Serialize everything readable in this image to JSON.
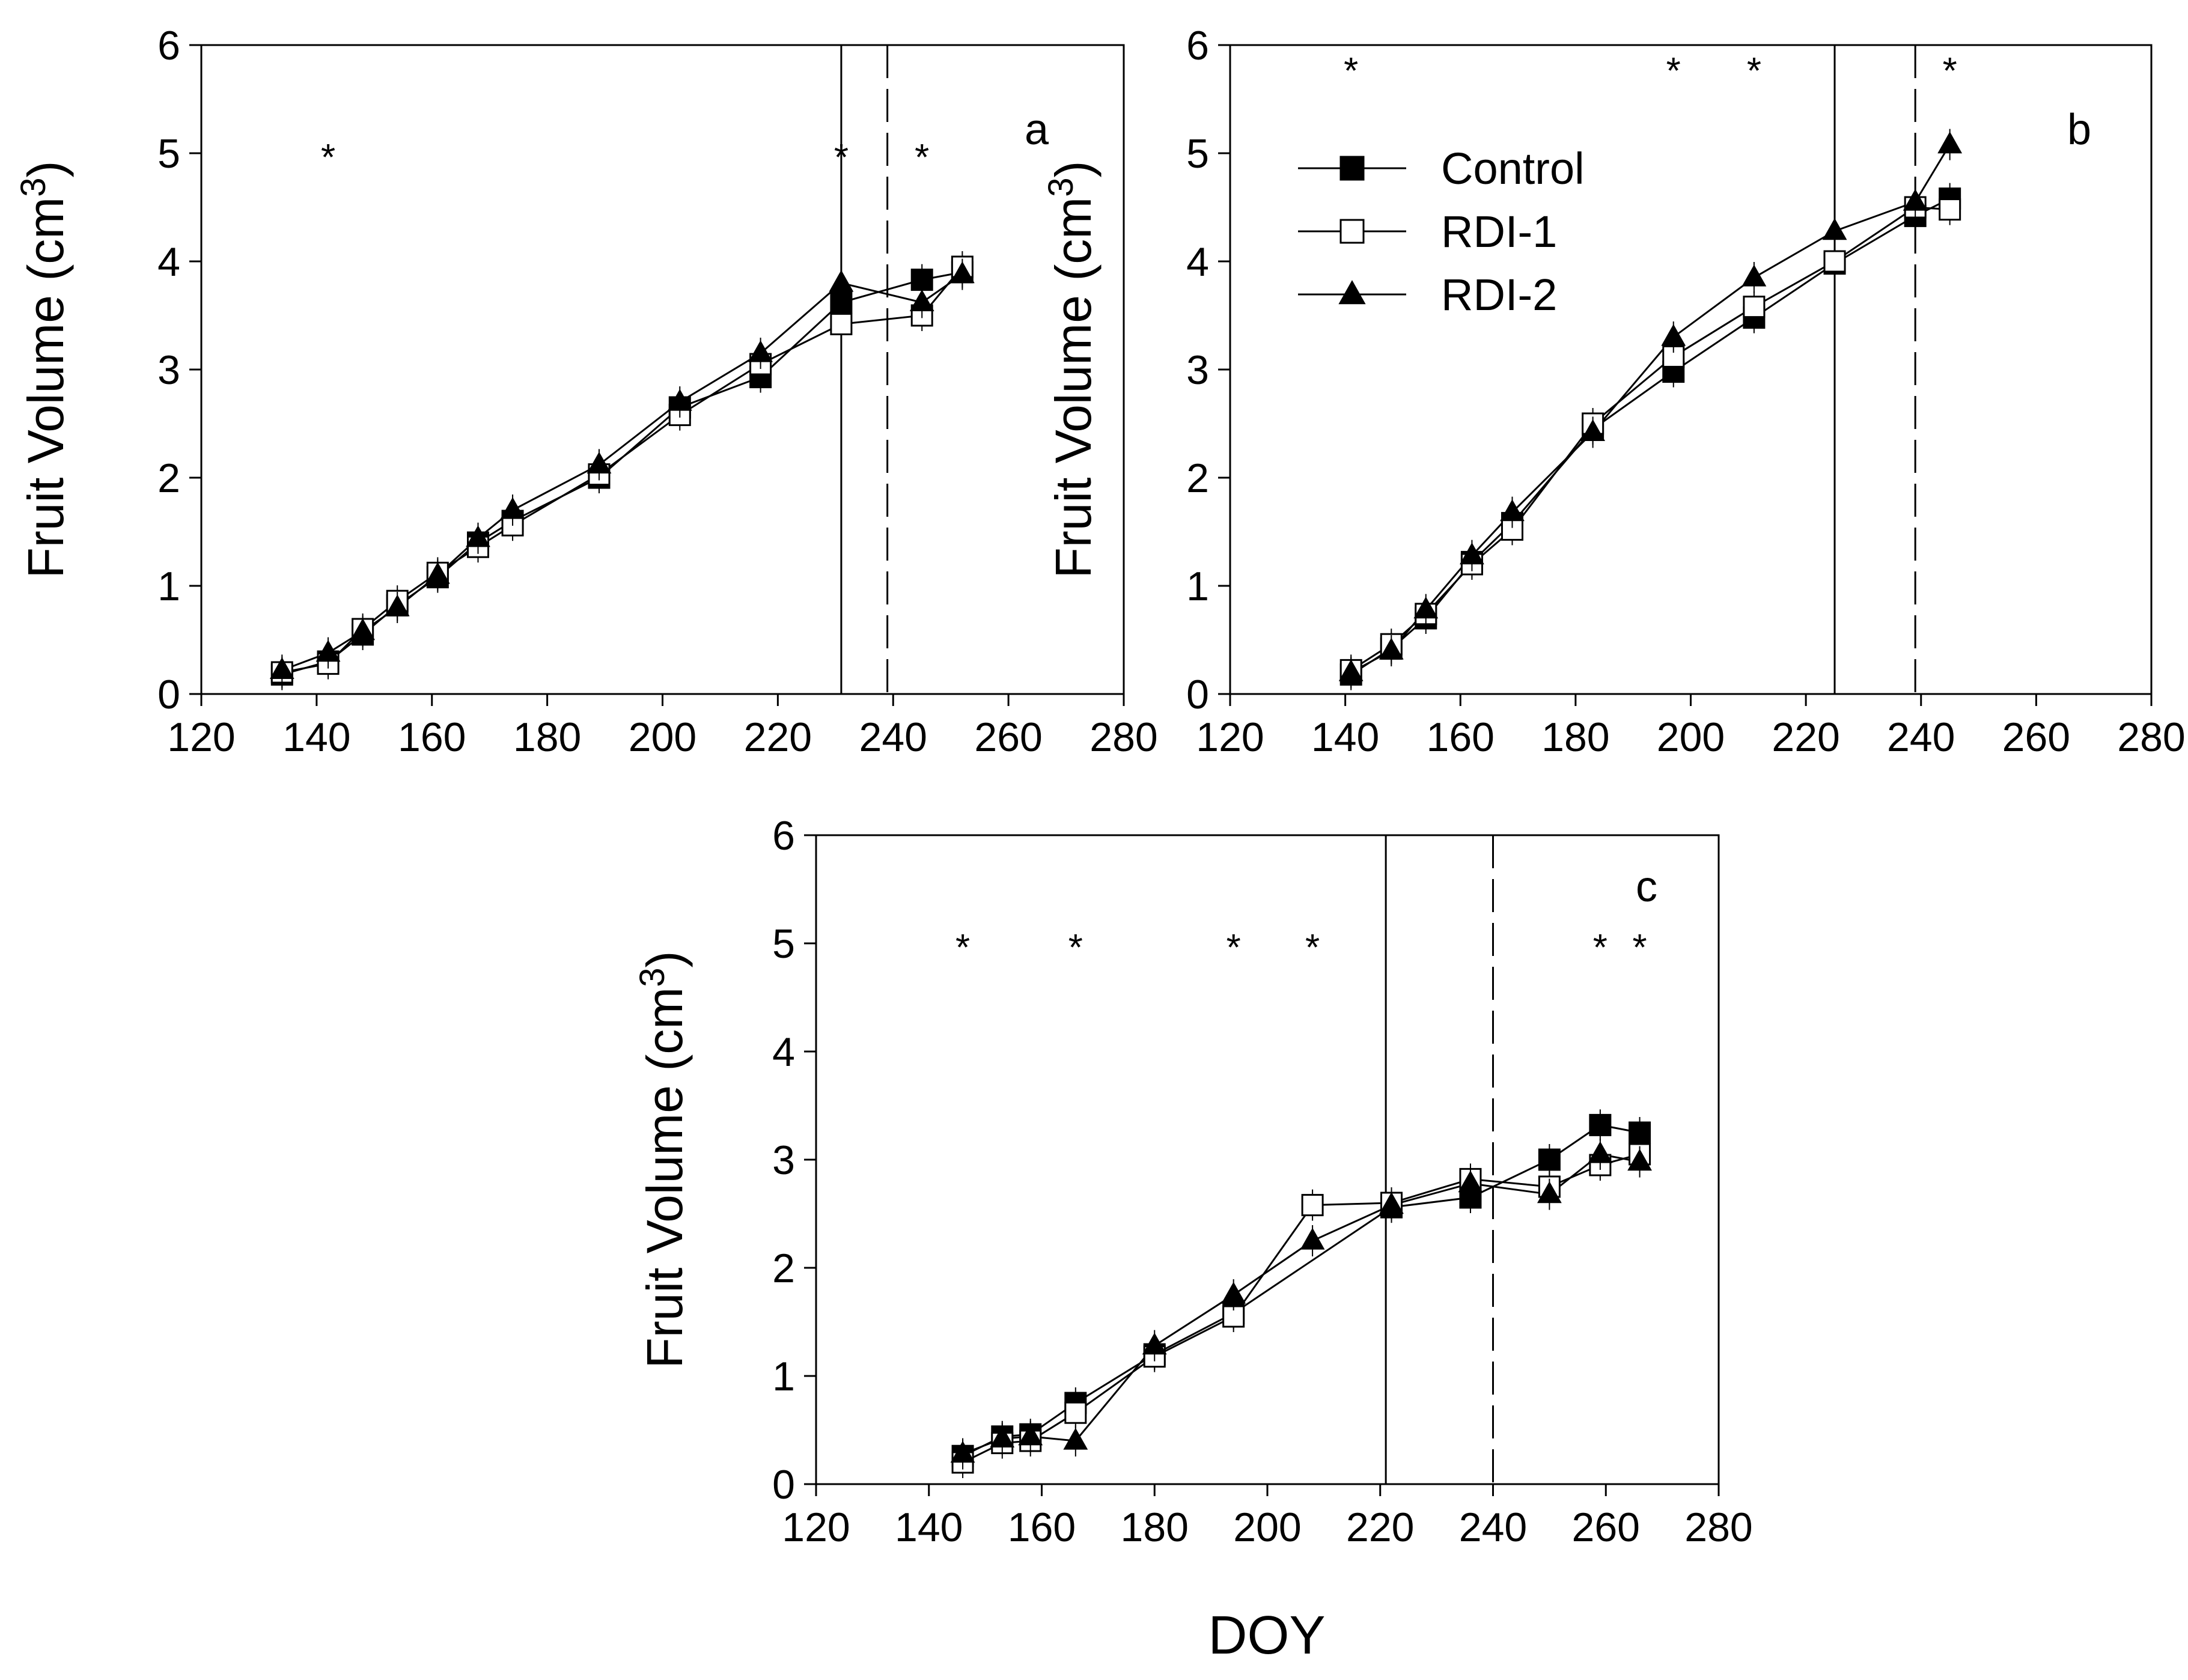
{
  "figure": {
    "y_axis_label_main": "Fruit Volume (cm",
    "y_axis_label_sup": "3",
    "y_axis_label_close": ")",
    "x_axis_label": "DOY",
    "legend": [
      {
        "name": "Control",
        "marker": "filled-square"
      },
      {
        "name": "RDI-1",
        "marker": "open-square"
      },
      {
        "name": "RDI-2",
        "marker": "filled-triangle"
      }
    ],
    "significance_marker": "*"
  },
  "chart_data": [
    {
      "type": "line",
      "panel_label": "a",
      "xlabel": "DOY",
      "ylabel": "Fruit Volume (cm3)",
      "xlim": [
        120,
        280
      ],
      "ylim": [
        0,
        6
      ],
      "x_ticks": [
        120,
        140,
        160,
        180,
        200,
        220,
        240,
        260,
        280
      ],
      "y_ticks": [
        0,
        1,
        2,
        3,
        4,
        5,
        6
      ],
      "vertical_lines": [
        {
          "x": 231,
          "style": "solid"
        },
        {
          "x": 239,
          "style": "dashed"
        }
      ],
      "significance": [
        {
          "x": 142,
          "y": 5
        },
        {
          "x": 231,
          "y": 5
        },
        {
          "x": 245,
          "y": 5
        }
      ],
      "series": [
        {
          "name": "Control",
          "marker": "filled-square",
          "x": [
            134,
            142,
            148,
            154,
            161,
            168,
            174,
            189,
            203,
            217,
            231,
            245,
            252
          ],
          "values": [
            0.18,
            0.3,
            0.55,
            0.82,
            1.08,
            1.4,
            1.6,
            2.0,
            2.65,
            2.93,
            3.62,
            3.83,
            3.9
          ]
        },
        {
          "name": "RDI-1",
          "marker": "open-square",
          "x": [
            134,
            142,
            148,
            154,
            161,
            168,
            174,
            189,
            203,
            217,
            231,
            245,
            252
          ],
          "values": [
            0.2,
            0.28,
            0.6,
            0.86,
            1.12,
            1.36,
            1.56,
            2.03,
            2.58,
            3.05,
            3.42,
            3.5,
            3.95
          ]
        },
        {
          "name": "RDI-2",
          "marker": "filled-triangle",
          "x": [
            134,
            142,
            148,
            154,
            161,
            168,
            174,
            189,
            203,
            217,
            231,
            245,
            252
          ],
          "values": [
            0.22,
            0.38,
            0.58,
            0.8,
            1.1,
            1.44,
            1.7,
            2.12,
            2.7,
            3.15,
            3.8,
            3.62,
            3.88
          ]
        }
      ]
    },
    {
      "type": "line",
      "panel_label": "b",
      "xlabel": "DOY",
      "ylabel": "Fruit Volume (cm3)",
      "xlim": [
        120,
        280
      ],
      "ylim": [
        0,
        6
      ],
      "x_ticks": [
        120,
        140,
        160,
        180,
        200,
        220,
        240,
        260,
        280
      ],
      "y_ticks": [
        0,
        1,
        2,
        3,
        4,
        5,
        6
      ],
      "vertical_lines": [
        {
          "x": 225,
          "style": "solid"
        },
        {
          "x": 239,
          "style": "dashed"
        }
      ],
      "significance": [
        {
          "x": 141,
          "y": 5.8
        },
        {
          "x": 197,
          "y": 5.8
        },
        {
          "x": 211,
          "y": 5.8
        },
        {
          "x": 245,
          "y": 5.8
        }
      ],
      "legend_position": "top-left",
      "series": [
        {
          "name": "Control",
          "marker": "filled-square",
          "x": [
            141,
            148,
            154,
            162,
            169,
            183,
            197,
            211,
            225,
            239,
            245
          ],
          "values": [
            0.18,
            0.42,
            0.7,
            1.22,
            1.58,
            2.45,
            2.98,
            3.48,
            3.98,
            4.42,
            4.58
          ]
        },
        {
          "name": "RDI-1",
          "marker": "open-square",
          "x": [
            141,
            148,
            154,
            162,
            169,
            183,
            197,
            211,
            225,
            239,
            245
          ],
          "values": [
            0.22,
            0.46,
            0.74,
            1.2,
            1.52,
            2.5,
            3.12,
            3.58,
            4.0,
            4.5,
            4.48
          ]
        },
        {
          "name": "RDI-2",
          "marker": "filled-triangle",
          "x": [
            141,
            148,
            154,
            162,
            169,
            183,
            197,
            211,
            225,
            239,
            245
          ],
          "values": [
            0.2,
            0.4,
            0.78,
            1.28,
            1.68,
            2.42,
            3.3,
            3.85,
            4.28,
            4.55,
            5.08
          ]
        }
      ]
    },
    {
      "type": "line",
      "panel_label": "c",
      "xlabel": "DOY",
      "ylabel": "Fruit Volume (cm3)",
      "xlim": [
        120,
        280
      ],
      "ylim": [
        0,
        6
      ],
      "x_ticks": [
        120,
        140,
        160,
        180,
        200,
        220,
        240,
        260,
        280
      ],
      "y_ticks": [
        0,
        1,
        2,
        3,
        4,
        5,
        6
      ],
      "vertical_lines": [
        {
          "x": 221,
          "style": "solid"
        },
        {
          "x": 240,
          "style": "dashed"
        }
      ],
      "significance": [
        {
          "x": 146,
          "y": 5
        },
        {
          "x": 166,
          "y": 5
        },
        {
          "x": 194,
          "y": 5
        },
        {
          "x": 208,
          "y": 5
        },
        {
          "x": 259,
          "y": 5
        },
        {
          "x": 266,
          "y": 5
        }
      ],
      "series": [
        {
          "name": "Control",
          "marker": "filled-square",
          "x": [
            146,
            153,
            158,
            166,
            180,
            194,
            222,
            236,
            250,
            259,
            266
          ],
          "values": [
            0.26,
            0.44,
            0.46,
            0.75,
            1.2,
            1.58,
            2.56,
            2.65,
            3.0,
            3.32,
            3.25
          ]
        },
        {
          "name": "RDI-1",
          "marker": "open-square",
          "x": [
            146,
            153,
            158,
            166,
            180,
            194,
            208,
            222,
            236,
            250,
            259,
            266
          ],
          "values": [
            0.2,
            0.38,
            0.4,
            0.66,
            1.18,
            1.55,
            2.58,
            2.6,
            2.82,
            2.75,
            2.95,
            3.05
          ]
        },
        {
          "name": "RDI-2",
          "marker": "filled-triangle",
          "x": [
            146,
            153,
            158,
            166,
            180,
            194,
            208,
            222,
            236,
            250,
            259,
            266
          ],
          "values": [
            0.28,
            0.42,
            0.44,
            0.4,
            1.28,
            1.75,
            2.25,
            2.58,
            2.78,
            2.68,
            3.05,
            2.98
          ]
        }
      ]
    }
  ]
}
